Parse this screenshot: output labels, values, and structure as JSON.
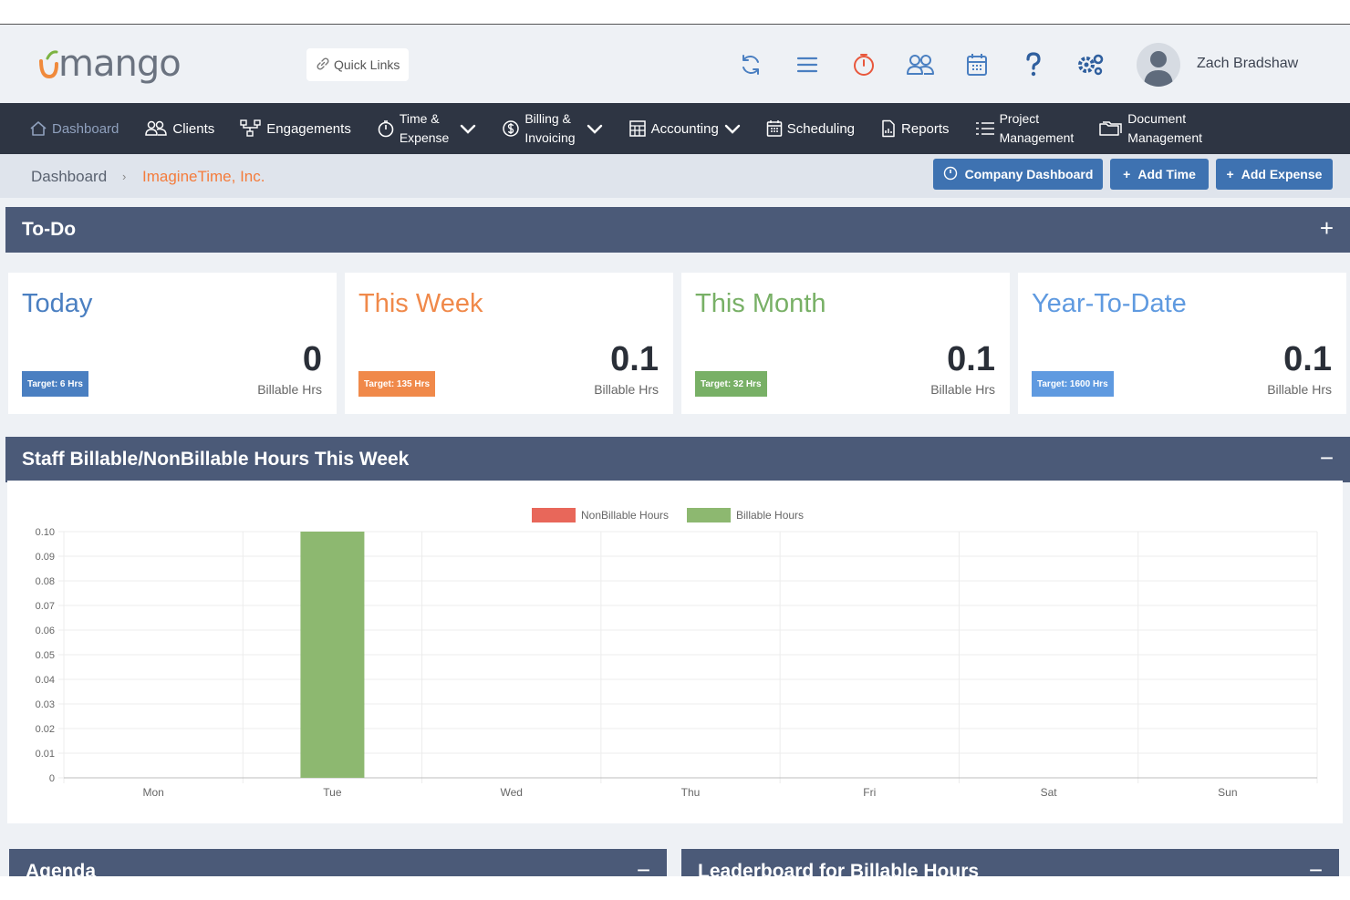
{
  "header": {
    "logo_text": "mango",
    "quick_links": "Quick Links",
    "user_name": "Zach Bradshaw",
    "icons": [
      "refresh-icon",
      "menu-icon",
      "timer-icon",
      "users-icon",
      "calendar-icon",
      "help-icon",
      "settings-icon"
    ]
  },
  "nav": {
    "dashboard": "Dashboard",
    "clients": "Clients",
    "engagements": "Engagements",
    "time_line1": "Time &",
    "time_line2": "Expense",
    "billing_line1": "Billing &",
    "billing_line2": "Invoicing",
    "accounting": "Accounting",
    "scheduling": "Scheduling",
    "reports": "Reports",
    "project_line1": "Project",
    "project_line2": "Management",
    "document_line1": "Document",
    "document_line2": "Management"
  },
  "breadcrumb": {
    "home": "Dashboard",
    "separator": "›",
    "current": "ImagineTime, Inc."
  },
  "actions": {
    "company_dashboard": "Company Dashboard",
    "add_time": "Add Time",
    "add_expense": "Add Expense"
  },
  "todo": {
    "title": "To-Do",
    "toggle": "+"
  },
  "cards": [
    {
      "title": "Today",
      "target": "Target: 6 Hrs",
      "value": "0",
      "unit": "Billable Hrs",
      "color": "#4a7fc1"
    },
    {
      "title": "This Week",
      "target": "Target: 135 Hrs",
      "value": "0.1",
      "unit": "Billable Hrs",
      "color": "#f0894a"
    },
    {
      "title": "This Month",
      "target": "Target: 32 Hrs",
      "value": "0.1",
      "unit": "Billable Hrs",
      "color": "#78b066"
    },
    {
      "title": "Year-To-Date",
      "target": "Target: 1600 Hrs",
      "value": "0.1",
      "unit": "Billable Hrs",
      "color": "#5f9ae0"
    }
  ],
  "staff_panel": {
    "title": "Staff Billable/NonBillable Hours This Week",
    "toggle": "−"
  },
  "chart_data": {
    "type": "bar",
    "categories": [
      "Mon",
      "Tue",
      "Wed",
      "Thu",
      "Fri",
      "Sat",
      "Sun"
    ],
    "series": [
      {
        "name": "NonBillable Hours",
        "color": "#e8675a",
        "values": [
          0,
          0,
          0,
          0,
          0,
          0,
          0
        ]
      },
      {
        "name": "Billable Hours",
        "color": "#8db870",
        "values": [
          0,
          0.1,
          0,
          0,
          0,
          0,
          0
        ]
      }
    ],
    "yticks": [
      "0",
      "0.01",
      "0.02",
      "0.03",
      "0.04",
      "0.05",
      "0.06",
      "0.07",
      "0.08",
      "0.09",
      "0.10"
    ],
    "ylim": [
      0,
      0.1
    ],
    "legend_position": "top-center",
    "grid": true
  },
  "agenda": {
    "title": "Agenda",
    "toggle": "−"
  },
  "leaderboard": {
    "title": "Leaderboard for Billable Hours",
    "toggle": "−"
  }
}
